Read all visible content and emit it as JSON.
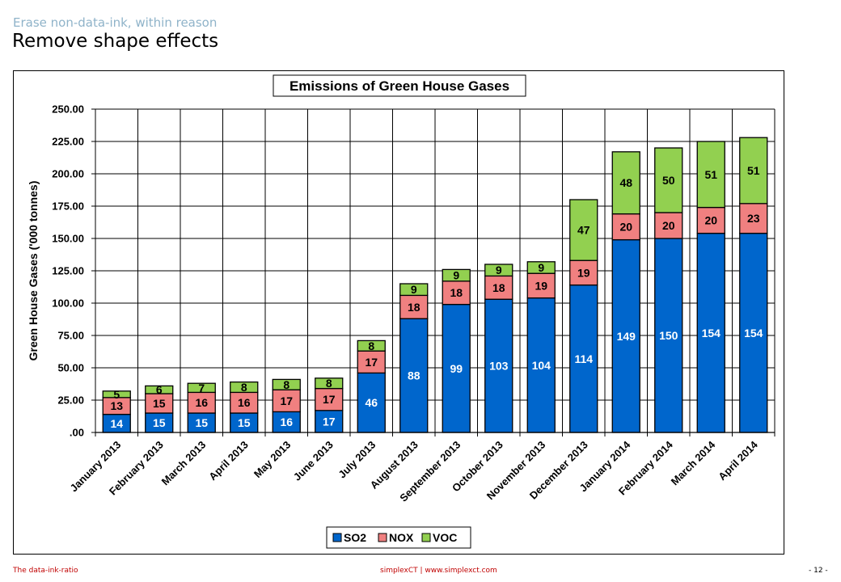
{
  "slide": {
    "subtitle": "Erase non-data-ink, within reason",
    "title": "Remove shape effects"
  },
  "footer": {
    "left": "The data-ink-ratio",
    "center": "simplexCT  |  www.simplexct.com",
    "page": "- 12 -"
  },
  "colors": {
    "SO2": "#0066cc",
    "NOX": "#f08080",
    "VOC": "#92d050"
  },
  "chart_data": {
    "type": "bar",
    "stacked": true,
    "title": "Emissions of Green House Gases",
    "xlabel": "",
    "ylabel": "Green House Gases ('000 tonnes)",
    "ylim": [
      0,
      250
    ],
    "yticks": [
      ".00",
      "25.00",
      "50.00",
      "75.00",
      "100.00",
      "125.00",
      "150.00",
      "175.00",
      "200.00",
      "225.00",
      "250.00"
    ],
    "grid": true,
    "legend_position": "bottom",
    "categories": [
      "January 2013",
      "February 2013",
      "March 2013",
      "April 2013",
      "May 2013",
      "June 2013",
      "July 2013",
      "August 2013",
      "September 2013",
      "October 2013",
      "November 2013",
      "December 2013",
      "January 2014",
      "February 2014",
      "March 2014",
      "April 2014"
    ],
    "series": [
      {
        "name": "SO2",
        "values": [
          14,
          15,
          15,
          15,
          16,
          17,
          46,
          88,
          99,
          103,
          104,
          114,
          149,
          150,
          154,
          154
        ]
      },
      {
        "name": "NOX",
        "values": [
          13,
          15,
          16,
          16,
          17,
          17,
          17,
          18,
          18,
          18,
          19,
          19,
          20,
          20,
          20,
          23
        ]
      },
      {
        "name": "VOC",
        "values": [
          5,
          6,
          7,
          8,
          8,
          8,
          8,
          9,
          9,
          9,
          9,
          47,
          48,
          50,
          51,
          51
        ]
      }
    ]
  }
}
